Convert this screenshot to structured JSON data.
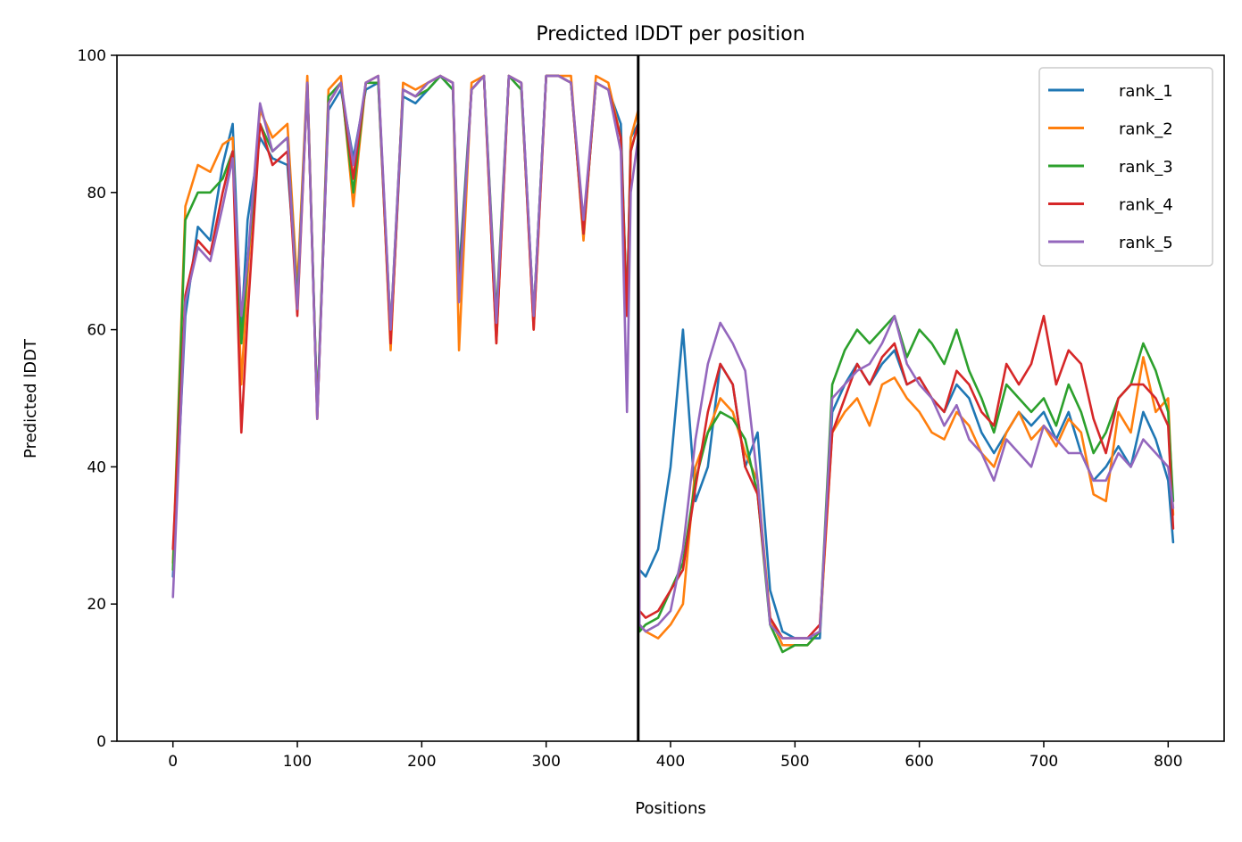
{
  "chart_data": {
    "type": "line",
    "title": "Predicted lDDT per position",
    "xlabel": "Positions",
    "ylabel": "Predicted lDDT",
    "xlim": [
      -45,
      845
    ],
    "ylim": [
      0,
      100
    ],
    "xticks": [
      0,
      100,
      200,
      300,
      400,
      500,
      600,
      700,
      800
    ],
    "yticks": [
      0,
      20,
      40,
      60,
      80,
      100
    ],
    "vline_x": 374,
    "legend_position": "top-right",
    "grid": false,
    "x": [
      0,
      10,
      20,
      30,
      40,
      48,
      55,
      60,
      70,
      80,
      92,
      100,
      108,
      116,
      125,
      135,
      145,
      155,
      165,
      175,
      185,
      195,
      205,
      215,
      225,
      230,
      240,
      250,
      260,
      270,
      280,
      290,
      300,
      310,
      320,
      330,
      340,
      350,
      360,
      365,
      368,
      374,
      375,
      380,
      390,
      400,
      410,
      420,
      430,
      440,
      450,
      460,
      470,
      480,
      490,
      500,
      510,
      520,
      530,
      540,
      550,
      560,
      570,
      580,
      590,
      600,
      610,
      620,
      630,
      640,
      650,
      660,
      670,
      680,
      690,
      700,
      710,
      720,
      730,
      740,
      750,
      760,
      770,
      780,
      790,
      800,
      804
    ],
    "series": [
      {
        "name": "rank_1",
        "color": "#1f77b4",
        "values": [
          24,
          62,
          75,
          73,
          84,
          90,
          60,
          76,
          88,
          85,
          84,
          65,
          96,
          48,
          92,
          95,
          85,
          95,
          96,
          58,
          94,
          93,
          95,
          97,
          95,
          68,
          95,
          97,
          60,
          97,
          96,
          62,
          97,
          97,
          96,
          75,
          96,
          95,
          90,
          62,
          88,
          90,
          25,
          24,
          28,
          40,
          60,
          35,
          40,
          55,
          52,
          40,
          45,
          22,
          16,
          15,
          15,
          15,
          48,
          52,
          55,
          52,
          55,
          57,
          52,
          53,
          50,
          48,
          52,
          50,
          45,
          42,
          45,
          48,
          46,
          48,
          44,
          48,
          42,
          38,
          40,
          43,
          40,
          48,
          44,
          38,
          29
        ]
      },
      {
        "name": "rank_2",
        "color": "#ff7f0e",
        "values": [
          26,
          78,
          84,
          83,
          87,
          88,
          52,
          68,
          92,
          88,
          90,
          66,
          97,
          47,
          95,
          97,
          78,
          96,
          97,
          57,
          96,
          95,
          96,
          97,
          96,
          57,
          96,
          97,
          58,
          97,
          96,
          60,
          97,
          97,
          97,
          73,
          97,
          96,
          88,
          62,
          88,
          92,
          17,
          16,
          15,
          17,
          20,
          40,
          45,
          50,
          48,
          42,
          38,
          18,
          14,
          14,
          14,
          16,
          45,
          48,
          50,
          46,
          52,
          53,
          50,
          48,
          45,
          44,
          48,
          46,
          42,
          40,
          45,
          48,
          44,
          46,
          43,
          47,
          45,
          36,
          35,
          48,
          45,
          56,
          48,
          50,
          33
        ]
      },
      {
        "name": "rank_3",
        "color": "#2ca02c",
        "values": [
          25,
          76,
          80,
          80,
          82,
          86,
          58,
          70,
          90,
          86,
          88,
          64,
          96,
          48,
          94,
          96,
          80,
          96,
          96,
          60,
          95,
          94,
          95,
          97,
          95,
          66,
          95,
          97,
          62,
          97,
          95,
          62,
          97,
          97,
          96,
          74,
          96,
          95,
          88,
          63,
          86,
          90,
          16,
          17,
          18,
          22,
          26,
          38,
          45,
          48,
          47,
          44,
          36,
          17,
          13,
          14,
          14,
          16,
          52,
          57,
          60,
          58,
          60,
          62,
          56,
          60,
          58,
          55,
          60,
          54,
          50,
          45,
          52,
          50,
          48,
          50,
          46,
          52,
          48,
          42,
          45,
          50,
          52,
          58,
          54,
          48,
          35
        ]
      },
      {
        "name": "rank_4",
        "color": "#d62728",
        "values": [
          28,
          65,
          73,
          71,
          80,
          86,
          45,
          62,
          90,
          84,
          86,
          62,
          96,
          47,
          93,
          96,
          82,
          96,
          97,
          58,
          95,
          94,
          96,
          97,
          96,
          65,
          95,
          97,
          58,
          97,
          96,
          60,
          97,
          97,
          96,
          74,
          96,
          95,
          88,
          62,
          86,
          90,
          19,
          18,
          19,
          22,
          25,
          37,
          48,
          55,
          52,
          40,
          36,
          18,
          15,
          15,
          15,
          17,
          45,
          50,
          55,
          52,
          56,
          58,
          52,
          53,
          50,
          48,
          54,
          52,
          48,
          46,
          55,
          52,
          55,
          62,
          52,
          57,
          55,
          47,
          42,
          50,
          52,
          52,
          50,
          46,
          31
        ]
      },
      {
        "name": "rank_5",
        "color": "#9467bd",
        "values": [
          21,
          64,
          72,
          70,
          78,
          85,
          62,
          70,
          93,
          86,
          88,
          63,
          96,
          47,
          93,
          96,
          84,
          96,
          97,
          60,
          95,
          94,
          96,
          97,
          96,
          64,
          95,
          97,
          61,
          97,
          96,
          62,
          97,
          97,
          96,
          76,
          96,
          95,
          86,
          48,
          80,
          88,
          17,
          16,
          17,
          19,
          28,
          44,
          55,
          61,
          58,
          54,
          38,
          17,
          15,
          15,
          15,
          16,
          50,
          52,
          54,
          55,
          58,
          62,
          55,
          52,
          50,
          46,
          49,
          44,
          42,
          38,
          44,
          42,
          40,
          46,
          44,
          42,
          42,
          38,
          38,
          42,
          40,
          44,
          42,
          40,
          34
        ]
      }
    ]
  }
}
